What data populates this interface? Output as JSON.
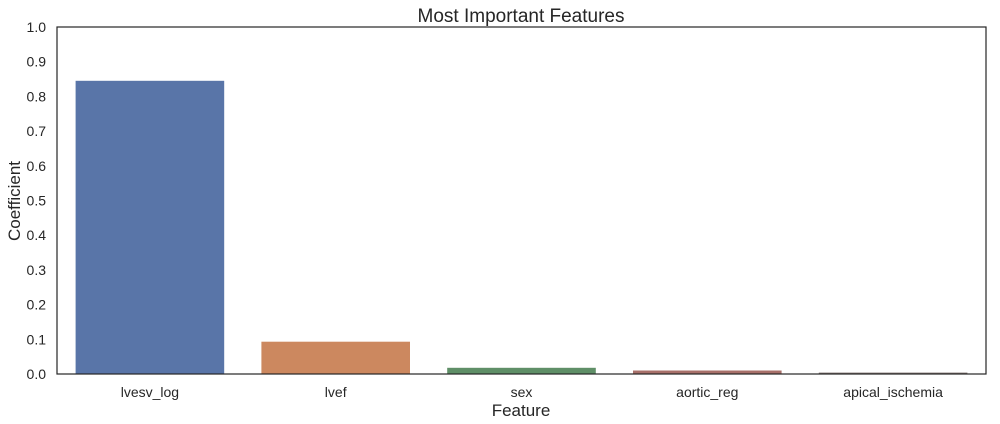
{
  "chart_data": {
    "type": "bar",
    "title": "Most Important Features",
    "xlabel": "Feature",
    "ylabel": "Coefficient",
    "categories": [
      "lvesv_log",
      "lvef",
      "sex",
      "aortic_reg",
      "apical_ischemia"
    ],
    "values": [
      0.845,
      0.093,
      0.018,
      0.01,
      0.004
    ],
    "colors": [
      "#5975a8",
      "#cc885f",
      "#5f8f67",
      "#a8706a",
      "#7f7470"
    ],
    "ylim": [
      0,
      1.0
    ],
    "yticks": [
      "0.0",
      "0.1",
      "0.2",
      "0.3",
      "0.4",
      "0.5",
      "0.6",
      "0.7",
      "0.8",
      "0.9",
      "1.0"
    ],
    "grid": false,
    "legend": "none"
  }
}
